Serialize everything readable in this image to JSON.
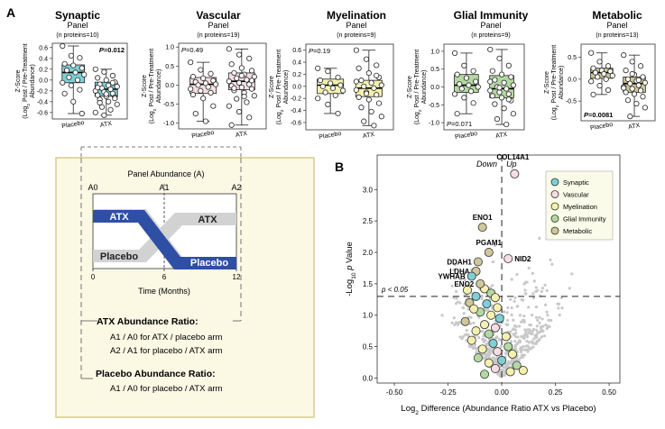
{
  "figure": {
    "panel_a_letter": "A",
    "panel_b_letter": "B",
    "colors": {
      "synaptic": "#7fcfd6",
      "vascular": "#f5dde2",
      "myelination": "#f4f1ae",
      "glial_immunity": "#b3d9a2",
      "metabolic": "#cfc79a",
      "schematic_bg": "#fbf8e4",
      "schematic_border": "#d8cc8c",
      "atx_band": "#2f4fa5",
      "placebo_band": "#d2d2d2",
      "volcano_bg_point": "#c8c8c8",
      "legend_bg": "#fafbe8"
    }
  },
  "chart_data": [
    {
      "type": "box",
      "id": "synaptic",
      "title": "Synaptic",
      "subtitle": "Panel",
      "count": "(n proteins=10)",
      "ylabel_line1": "Z-Score",
      "ylabel_line2": "(Log",
      "ylabel_sub": "2",
      "ylabel_line2b": " Post / Pre-Treatment",
      "ylabel_line3": "Abundance)",
      "yticks": [
        0.6,
        0.4,
        0.2,
        0.0,
        -0.2,
        -0.4,
        -0.6
      ],
      "ylim": [
        -0.72,
        0.68
      ],
      "categories": [
        "Placebo",
        "ATX"
      ],
      "annotation": "P=0.012",
      "annotation_bold": true,
      "annotation_pos": "top-right",
      "boxes": [
        {
          "q1": -0.05,
          "median": 0.14,
          "q3": 0.28,
          "min": -0.62,
          "max": 0.63
        },
        {
          "q1": -0.3,
          "median": -0.17,
          "q3": -0.04,
          "min": -0.65,
          "max": 0.2
        }
      ],
      "points": [
        [
          0.63,
          0.45,
          0.41,
          0.3,
          0.27,
          0.22,
          0.18,
          0.14,
          0.1,
          0.05,
          0.0,
          -0.05,
          -0.1,
          -0.18,
          -0.25,
          -0.4,
          -0.62
        ],
        [
          0.2,
          0.15,
          0.08,
          0.04,
          0.0,
          -0.04,
          -0.08,
          -0.1,
          -0.12,
          -0.15,
          -0.17,
          -0.2,
          -0.22,
          -0.25,
          -0.28,
          -0.3,
          -0.32,
          -0.36,
          -0.4,
          -0.45,
          -0.5,
          -0.55,
          -0.6,
          -0.65,
          -0.05,
          -0.14,
          -0.26,
          -0.34,
          -0.42
        ]
      ]
    },
    {
      "type": "box",
      "id": "vascular",
      "title": "Vascular",
      "subtitle": "Panel",
      "count": "(n proteins=19)",
      "ylabel_line1": "Z-Score",
      "ylabel_line2": "(Log",
      "ylabel_sub": "2",
      "ylabel_line2b": " Post / Pre-Treatment",
      "ylabel_line3": "Abundance)",
      "yticks": [
        1.0,
        0.5,
        0.0,
        -0.5,
        -1.0
      ],
      "ylim": [
        -1.15,
        1.1
      ],
      "categories": [
        "Placebo",
        "ATX"
      ],
      "annotation": "P=0.49",
      "annotation_bold": false,
      "annotation_pos": "top-left",
      "boxes": [
        {
          "q1": -0.22,
          "median": 0.02,
          "q3": 0.2,
          "min": -0.95,
          "max": 0.6
        },
        {
          "q1": -0.12,
          "median": 0.1,
          "q3": 0.32,
          "min": -1.05,
          "max": 0.95
        }
      ],
      "points": [
        [
          0.6,
          0.4,
          0.3,
          0.22,
          0.18,
          0.12,
          0.08,
          0.05,
          0.02,
          0.0,
          -0.05,
          -0.1,
          -0.15,
          -0.2,
          -0.25,
          -0.35,
          -0.55,
          -0.75,
          -0.95
        ],
        [
          0.95,
          0.8,
          0.7,
          0.55,
          0.45,
          0.38,
          0.32,
          0.28,
          0.22,
          0.18,
          0.14,
          0.1,
          0.06,
          0.02,
          -0.02,
          -0.06,
          -0.1,
          -0.14,
          -0.2,
          -0.28,
          -0.36,
          -0.45,
          -0.55,
          -0.7,
          -0.85,
          -1.05,
          0.25,
          0.12,
          -0.08,
          -0.3
        ]
      ]
    },
    {
      "type": "box",
      "id": "myelination",
      "title": "Myelination",
      "subtitle": "Panel",
      "count": "(n proteins=9)",
      "ylabel_line1": "Z-Score",
      "ylabel_line2": "(Log",
      "ylabel_sub": "2",
      "ylabel_line2b": " Post / Pre-Treatment",
      "ylabel_line3": "Abundance)",
      "yticks": [
        0.6,
        0.4,
        0.2,
        0.0,
        -0.2,
        -0.4,
        -0.6
      ],
      "ylim": [
        -0.72,
        0.7
      ],
      "categories": [
        "Placebo",
        "ATX"
      ],
      "annotation": "P=0.19",
      "annotation_bold": false,
      "annotation_pos": "top-left",
      "boxes": [
        {
          "q1": -0.12,
          "median": 0.02,
          "q3": 0.12,
          "min": -0.45,
          "max": 0.3
        },
        {
          "q1": -0.17,
          "median": -0.03,
          "q3": 0.1,
          "min": -0.65,
          "max": 0.6
        }
      ],
      "points": [
        [
          0.3,
          0.25,
          0.15,
          0.1,
          0.05,
          0.02,
          0.0,
          -0.03,
          -0.07,
          -0.1,
          -0.15,
          -0.2,
          -0.3,
          -0.45
        ],
        [
          0.6,
          0.45,
          0.35,
          0.3,
          0.22,
          0.15,
          0.1,
          0.06,
          0.02,
          0.0,
          -0.03,
          -0.06,
          -0.1,
          -0.14,
          -0.18,
          -0.22,
          -0.28,
          -0.35,
          -0.42,
          -0.5,
          -0.58,
          -0.65,
          0.08,
          -0.12,
          0.18
        ]
      ]
    },
    {
      "type": "box",
      "id": "glial",
      "title": "Glial Immunity",
      "subtitle": "Panel",
      "count": "(n proteins=9)",
      "ylabel_line1": "Z-Score",
      "ylabel_line2": "(Log",
      "ylabel_sub": "2",
      "ylabel_line2b": " Post / Pre-Treatment",
      "ylabel_line3": "Abundance)",
      "yticks": [
        1.0,
        0.5,
        0.0,
        -0.5,
        -1.0
      ],
      "ylim": [
        -1.2,
        1.2
      ],
      "categories": [
        "Placebo",
        "ATX"
      ],
      "annotation": "P=0.071",
      "annotation_bold": false,
      "annotation_pos": "bottom-left",
      "boxes": [
        {
          "q1": -0.15,
          "median": 0.05,
          "q3": 0.35,
          "min": -0.75,
          "max": 0.95
        },
        {
          "q1": -0.3,
          "median": -0.05,
          "q3": 0.32,
          "min": -1.05,
          "max": 1.05
        }
      ],
      "points": [
        [
          0.95,
          0.6,
          0.45,
          0.35,
          0.25,
          0.15,
          0.08,
          0.05,
          0.0,
          -0.05,
          -0.12,
          -0.2,
          -0.3,
          -0.45,
          -0.75
        ],
        [
          1.05,
          0.8,
          0.6,
          0.45,
          0.35,
          0.28,
          0.2,
          0.12,
          0.05,
          0.0,
          -0.05,
          -0.1,
          -0.15,
          -0.2,
          -0.25,
          -0.3,
          -0.38,
          -0.48,
          -0.6,
          -0.75,
          -0.9,
          -1.05,
          0.15,
          -0.02,
          -0.35
        ]
      ]
    },
    {
      "type": "box",
      "id": "metabolic",
      "title": "Metabolic",
      "subtitle": "Panel",
      "count": "(n proteins=13)",
      "ylabel_line1": "Z-Score",
      "ylabel_line2": "(Log",
      "ylabel_sub": "2",
      "ylabel_line2b": " Post / Pre-Treatment",
      "ylabel_line3": "Abundance)",
      "yticks": [
        0.5,
        0.0,
        -0.5
      ],
      "ylim": [
        -0.95,
        0.8
      ],
      "categories": [
        "Placebo",
        "ATX"
      ],
      "annotation": "P=0.0081",
      "annotation_bold": true,
      "annotation_pos": "bottom-left",
      "boxes": [
        {
          "q1": 0.02,
          "median": 0.15,
          "q3": 0.25,
          "min": -0.35,
          "max": 0.6
        },
        {
          "q1": -0.3,
          "median": -0.1,
          "q3": 0.05,
          "min": -0.85,
          "max": 0.55
        }
      ],
      "points": [
        [
          0.6,
          0.4,
          0.3,
          0.25,
          0.2,
          0.18,
          0.15,
          0.12,
          0.08,
          0.05,
          0.0,
          -0.05,
          -0.15,
          -0.25,
          -0.35
        ],
        [
          0.55,
          0.4,
          0.3,
          0.2,
          0.1,
          0.05,
          0.0,
          -0.04,
          -0.08,
          -0.1,
          -0.14,
          -0.18,
          -0.22,
          -0.26,
          -0.3,
          -0.34,
          -0.4,
          -0.48,
          -0.56,
          -0.65,
          -0.85,
          -0.02,
          -0.2,
          0.12
        ]
      ]
    },
    {
      "type": "scatter",
      "id": "volcano",
      "xlabel_pre": "Log",
      "xlabel_sub": "2",
      "xlabel_post": " Difference (Abundance Ratio ATX vs Placebo)",
      "ylabel_pre": "-Log",
      "ylabel_sub": "10",
      "ylabel_p": "p",
      "ylabel_post": " Value",
      "xticks": [
        -0.5,
        -0.25,
        0.0,
        0.25,
        0.5
      ],
      "xtick_labels": [
        "-0.50",
        "-0.25",
        "0.00",
        "0.25",
        "0.50"
      ],
      "yticks": [
        0.0,
        0.5,
        1.0,
        1.5,
        2.0,
        2.5,
        3.0
      ],
      "ytick_labels": [
        "0.0",
        "0.5",
        "1.0",
        "1.5",
        "2.0",
        "2.5",
        "3.0"
      ],
      "xlim": [
        -0.58,
        0.55
      ],
      "ylim": [
        -0.08,
        3.55
      ],
      "threshold_y": 1.3,
      "threshold_label": "p < 0.05",
      "side_labels": [
        "Down",
        "Up"
      ],
      "legend": [
        {
          "label": "Synaptic",
          "key": "synaptic"
        },
        {
          "label": "Vascular",
          "key": "vascular"
        },
        {
          "label": "Myelination",
          "key": "myelination"
        },
        {
          "label": "Glial Immunity",
          "key": "glial_immunity"
        },
        {
          "label": "Metabolic",
          "key": "metabolic"
        }
      ],
      "labeled_points": [
        {
          "name": "COL14A1",
          "x": 0.06,
          "y": 3.25,
          "cat": "vascular",
          "label_side": "top"
        },
        {
          "name": "ENO1",
          "x": -0.09,
          "y": 2.4,
          "cat": "metabolic",
          "label_side": "top"
        },
        {
          "name": "PGAM1",
          "x": -0.06,
          "y": 2.0,
          "cat": "metabolic",
          "label_side": "top"
        },
        {
          "name": "NID2",
          "x": 0.03,
          "y": 1.9,
          "cat": "vascular",
          "label_side": "right"
        },
        {
          "name": "DDAH1",
          "x": -0.11,
          "y": 1.85,
          "cat": "metabolic",
          "label_side": "left"
        },
        {
          "name": "LDHA",
          "x": -0.12,
          "y": 1.7,
          "cat": "metabolic",
          "label_side": "left"
        },
        {
          "name": "YWHAB",
          "x": -0.14,
          "y": 1.62,
          "cat": "synaptic",
          "label_side": "left"
        },
        {
          "name": "ENO2",
          "x": -0.1,
          "y": 1.5,
          "cat": "metabolic",
          "label_side": "left"
        }
      ],
      "colored_points": [
        {
          "x": -0.08,
          "y": 1.42,
          "cat": "myelination"
        },
        {
          "x": -0.05,
          "y": 1.35,
          "cat": "glial_immunity"
        },
        {
          "x": -0.12,
          "y": 1.3,
          "cat": "synaptic"
        },
        {
          "x": -0.03,
          "y": 1.28,
          "cat": "myelination"
        },
        {
          "x": -0.15,
          "y": 1.2,
          "cat": "metabolic"
        },
        {
          "x": -0.07,
          "y": 1.18,
          "cat": "synaptic"
        },
        {
          "x": -0.02,
          "y": 1.12,
          "cat": "myelination"
        },
        {
          "x": -0.1,
          "y": 1.05,
          "cat": "glial_immunity"
        },
        {
          "x": -0.05,
          "y": 1.0,
          "cat": "myelination"
        },
        {
          "x": -0.01,
          "y": 0.95,
          "cat": "synaptic"
        },
        {
          "x": -0.17,
          "y": 0.9,
          "cat": "metabolic"
        },
        {
          "x": -0.08,
          "y": 0.85,
          "cat": "myelination"
        },
        {
          "x": -0.03,
          "y": 0.8,
          "cat": "vascular"
        },
        {
          "x": -0.12,
          "y": 0.75,
          "cat": "myelination"
        },
        {
          "x": -0.06,
          "y": 0.7,
          "cat": "glial_immunity"
        },
        {
          "x": 0.02,
          "y": 0.66,
          "cat": "myelination"
        },
        {
          "x": -0.14,
          "y": 0.6,
          "cat": "myelination"
        },
        {
          "x": -0.04,
          "y": 0.55,
          "cat": "synaptic"
        },
        {
          "x": 0.03,
          "y": 0.5,
          "cat": "glial_immunity"
        },
        {
          "x": -0.09,
          "y": 0.46,
          "cat": "myelination"
        },
        {
          "x": -0.02,
          "y": 0.42,
          "cat": "vascular"
        },
        {
          "x": 0.05,
          "y": 0.38,
          "cat": "myelination"
        },
        {
          "x": -0.11,
          "y": 0.32,
          "cat": "glial_immunity"
        },
        {
          "x": 0.0,
          "y": 0.28,
          "cat": "synaptic"
        },
        {
          "x": -0.06,
          "y": 0.24,
          "cat": "myelination"
        },
        {
          "x": 0.07,
          "y": 0.2,
          "cat": "glial_immunity"
        },
        {
          "x": -0.03,
          "y": 0.15,
          "cat": "vascular"
        },
        {
          "x": 0.04,
          "y": 0.1,
          "cat": "myelination"
        },
        {
          "x": -0.08,
          "y": 0.06,
          "cat": "glial_immunity"
        },
        {
          "x": 0.1,
          "y": 0.12,
          "cat": "myelination"
        },
        {
          "x": -0.16,
          "y": 1.4,
          "cat": "myelination"
        },
        {
          "x": -0.13,
          "y": 1.1,
          "cat": "myelination"
        }
      ]
    }
  ],
  "schematic": {
    "title": "Panel Abundance (A)",
    "timepoints": [
      "A0",
      "A1",
      "A2"
    ],
    "band_labels": {
      "atx_left": "ATX",
      "atx_right": "ATX",
      "placebo_left": "Placebo",
      "placebo_right": "Placebo"
    },
    "x_ticks": [
      0,
      6,
      12
    ],
    "x_axis_label": "Time (Months)",
    "atx_ratio_title": "ATX Abundance Ratio:",
    "atx_ratio_lines": [
      "A1 / A0 for ATX / placebo arm",
      "A2 / A1 for placebo / ATX arm"
    ],
    "placebo_ratio_title": "Placebo Abundance Ratio:",
    "placebo_ratio_lines": [
      "A1 / A0 for placebo / ATX arm"
    ]
  }
}
